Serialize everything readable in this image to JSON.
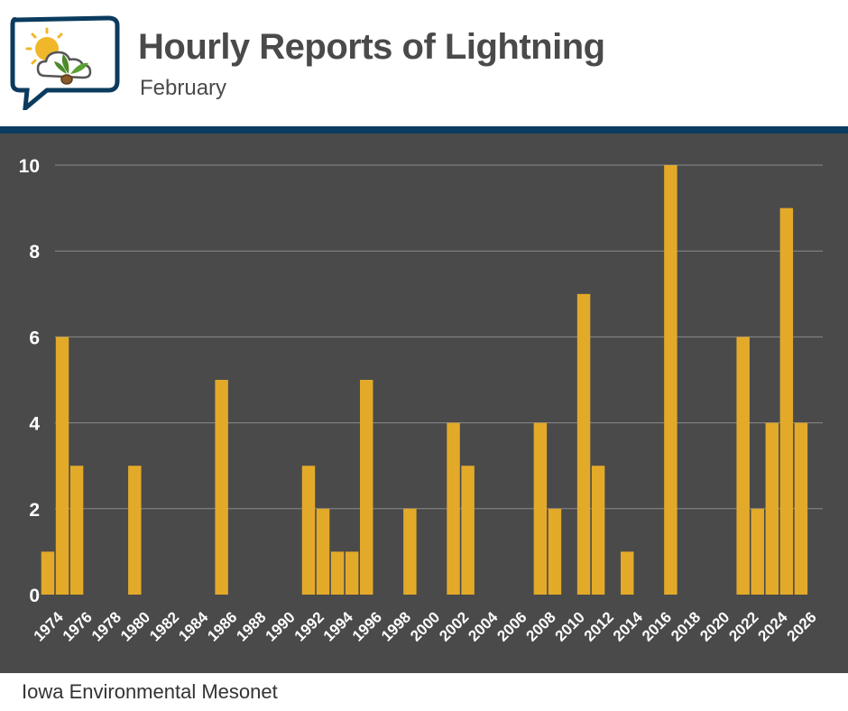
{
  "header": {
    "title": "Hourly Reports of Lightning",
    "subtitle": "February"
  },
  "footer": {
    "credit": "Iowa Environmental Mesonet"
  },
  "colors": {
    "bar": "#e3aa2a",
    "plot_background": "#4a4a4a",
    "divider": "#0b3b5e",
    "text": "#ffffff"
  },
  "chart_data": {
    "type": "bar",
    "title": "Hourly Reports of Lightning",
    "subtitle": "February",
    "xlabel": "",
    "ylabel": "",
    "ylim": [
      0,
      10
    ],
    "yticks": [
      0,
      2,
      4,
      6,
      8,
      10
    ],
    "xticks": [
      1974,
      1976,
      1978,
      1980,
      1982,
      1984,
      1986,
      1988,
      1990,
      1992,
      1994,
      1996,
      1998,
      2000,
      2002,
      2004,
      2006,
      2008,
      2010,
      2012,
      2014,
      2016,
      2018,
      2020,
      2022,
      2024,
      2026
    ],
    "xlim": [
      1973.5,
      2026.5
    ],
    "grid": true,
    "x": [
      1973,
      1974,
      1975,
      1979,
      1985,
      1991,
      1992,
      1993,
      1994,
      1995,
      1998,
      2001,
      2002,
      2007,
      2008,
      2010,
      2011,
      2013,
      2016,
      2021,
      2022,
      2023,
      2024,
      2025
    ],
    "values": [
      1,
      6,
      3,
      3,
      5,
      3,
      2,
      1,
      1,
      5,
      2,
      4,
      3,
      4,
      2,
      7,
      3,
      1,
      10,
      6,
      2,
      4,
      9,
      4
    ]
  }
}
